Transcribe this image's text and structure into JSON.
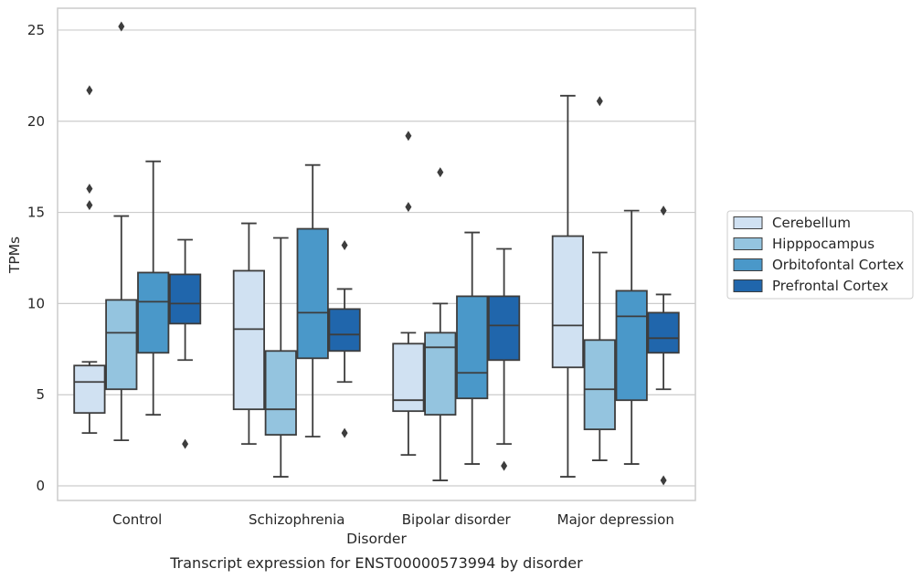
{
  "chart_data": {
    "type": "box",
    "caption": "Transcript expression for ENST00000573994 by disorder",
    "xlabel": "Disorder",
    "ylabel": "TPMs",
    "ylim": [
      -0.8,
      26.2
    ],
    "yticks": [
      0,
      5,
      10,
      15,
      20,
      25
    ],
    "grid": true,
    "legend_position": "right",
    "categories": [
      "Control",
      "Schizophrenia",
      "Bipolar disorder",
      "Major depression"
    ],
    "series": [
      {
        "name": "Cerebellum",
        "color": "#d0e1f2",
        "boxes": [
          {
            "whisker_low": 2.9,
            "q1": 4.0,
            "median": 5.7,
            "q3": 6.6,
            "whisker_high": 6.8,
            "outliers": [
              21.7,
              16.3,
              15.4
            ]
          },
          {
            "whisker_low": 2.3,
            "q1": 4.2,
            "median": 8.6,
            "q3": 11.8,
            "whisker_high": 14.4,
            "outliers": []
          },
          {
            "whisker_low": 1.7,
            "q1": 4.1,
            "median": 4.7,
            "q3": 7.8,
            "whisker_high": 8.4,
            "outliers": [
              19.2,
              15.3
            ]
          },
          {
            "whisker_low": 0.5,
            "q1": 6.5,
            "median": 8.8,
            "q3": 13.7,
            "whisker_high": 21.4,
            "outliers": []
          }
        ]
      },
      {
        "name": "Hipppocampus",
        "color": "#94c4df",
        "boxes": [
          {
            "whisker_low": 2.5,
            "q1": 5.3,
            "median": 8.4,
            "q3": 10.2,
            "whisker_high": 14.8,
            "outliers": [
              25.2
            ]
          },
          {
            "whisker_low": 0.5,
            "q1": 2.8,
            "median": 4.2,
            "q3": 7.4,
            "whisker_high": 13.6,
            "outliers": []
          },
          {
            "whisker_low": 0.3,
            "q1": 3.9,
            "median": 7.6,
            "q3": 8.4,
            "whisker_high": 10.0,
            "outliers": [
              17.2
            ]
          },
          {
            "whisker_low": 1.4,
            "q1": 3.1,
            "median": 5.3,
            "q3": 8.0,
            "whisker_high": 12.8,
            "outliers": [
              21.1
            ]
          }
        ]
      },
      {
        "name": "Orbitofontal Cortex",
        "color": "#4a98c9",
        "boxes": [
          {
            "whisker_low": 3.9,
            "q1": 7.3,
            "median": 10.1,
            "q3": 11.7,
            "whisker_high": 17.8,
            "outliers": []
          },
          {
            "whisker_low": 2.7,
            "q1": 7.0,
            "median": 9.5,
            "q3": 14.1,
            "whisker_high": 17.6,
            "outliers": []
          },
          {
            "whisker_low": 1.2,
            "q1": 4.8,
            "median": 6.2,
            "q3": 10.4,
            "whisker_high": 13.9,
            "outliers": []
          },
          {
            "whisker_low": 1.2,
            "q1": 4.7,
            "median": 9.3,
            "q3": 10.7,
            "whisker_high": 15.1,
            "outliers": []
          }
        ]
      },
      {
        "name": "Prefrontal Cortex",
        "color": "#2066ac",
        "boxes": [
          {
            "whisker_low": 6.9,
            "q1": 8.9,
            "median": 10.0,
            "q3": 11.6,
            "whisker_high": 13.5,
            "outliers": [
              2.3
            ]
          },
          {
            "whisker_low": 5.7,
            "q1": 7.4,
            "median": 8.3,
            "q3": 9.7,
            "whisker_high": 10.8,
            "outliers": [
              13.2,
              2.9
            ]
          },
          {
            "whisker_low": 2.3,
            "q1": 6.9,
            "median": 8.8,
            "q3": 10.4,
            "whisker_high": 13.0,
            "outliers": [
              1.1
            ]
          },
          {
            "whisker_low": 5.3,
            "q1": 7.3,
            "median": 8.1,
            "q3": 9.5,
            "whisker_high": 10.5,
            "outliers": [
              15.1,
              0.3
            ]
          }
        ]
      }
    ]
  }
}
